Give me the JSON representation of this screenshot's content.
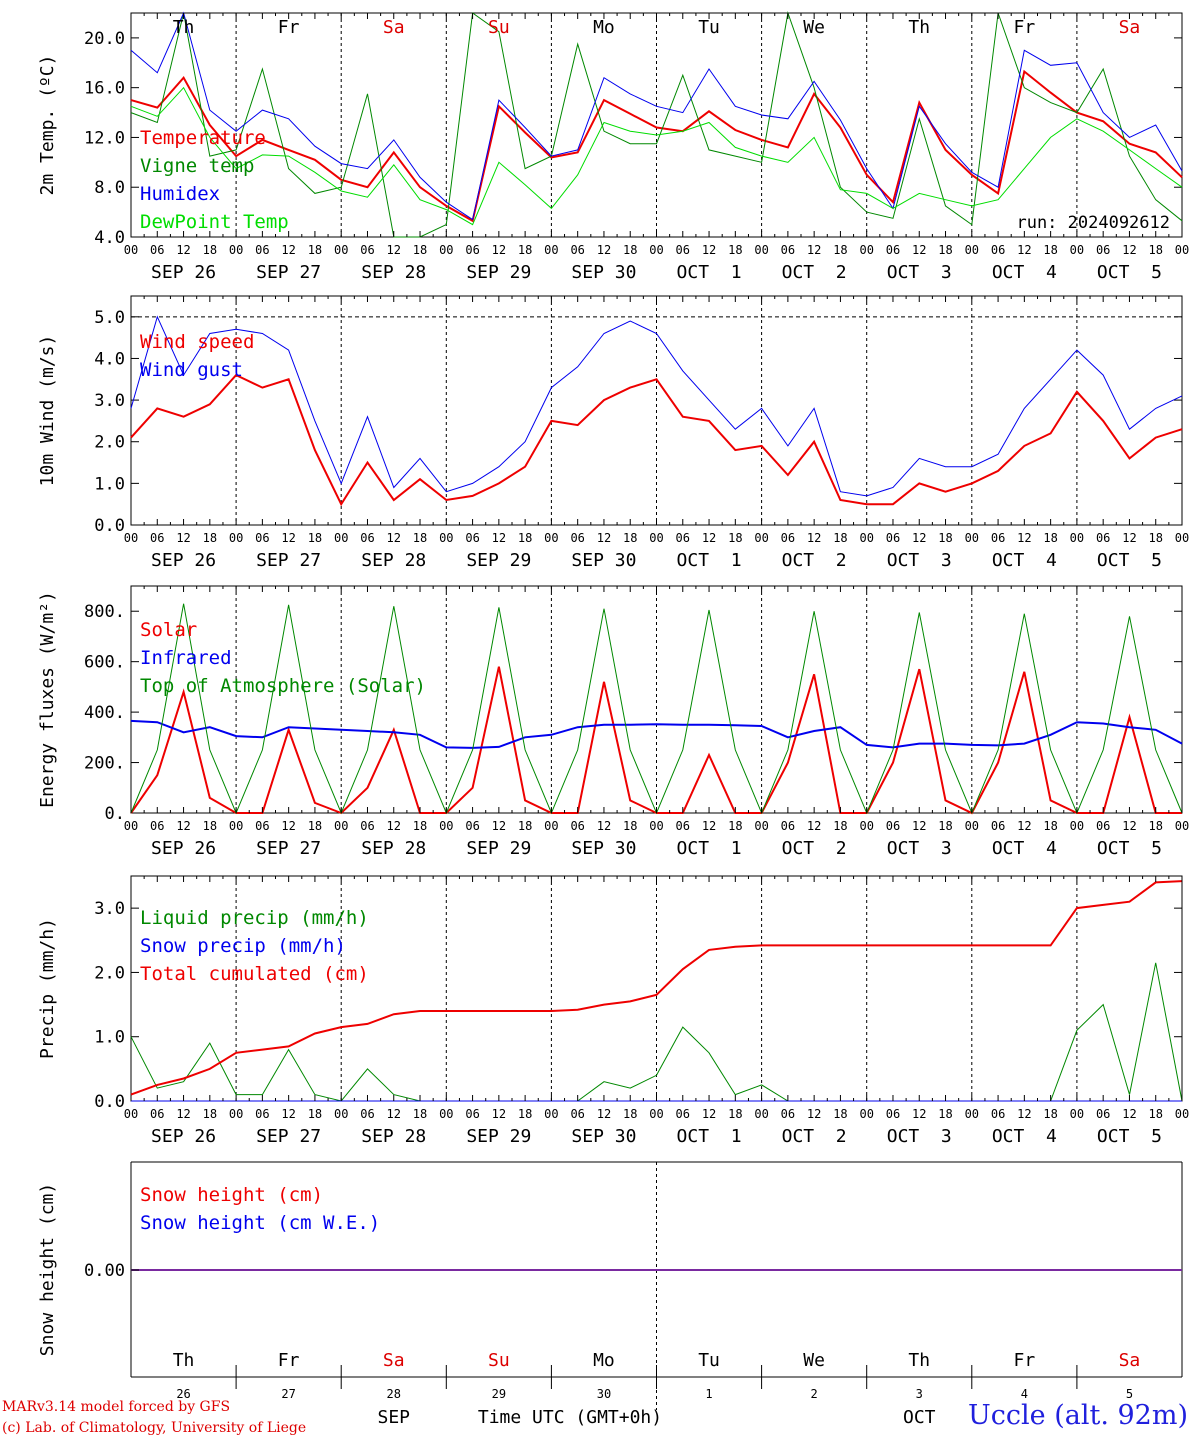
{
  "chart_data": [
    {
      "type": "line",
      "panel": "temperature",
      "ylabel": "2m Temp. (ºC)",
      "ylim": [
        4,
        22
      ],
      "yticks": [
        "4.0",
        "8.0",
        "12.0",
        "16.0",
        "20.0"
      ],
      "ytick_values": [
        4,
        8,
        12,
        16,
        20
      ],
      "run_label": "run: 2024092612",
      "weekday_labels": [
        {
          "label": "Th",
          "color": "#000000"
        },
        {
          "label": "Fr",
          "color": "#000000"
        },
        {
          "label": "Sa",
          "color": "#dd0000"
        },
        {
          "label": "Su",
          "color": "#dd0000"
        },
        {
          "label": "Mo",
          "color": "#000000"
        },
        {
          "label": "Tu",
          "color": "#000000"
        },
        {
          "label": "We",
          "color": "#000000"
        },
        {
          "label": "Th",
          "color": "#000000"
        },
        {
          "label": "Fr",
          "color": "#000000"
        },
        {
          "label": "Sa",
          "color": "#dd0000"
        }
      ],
      "x_hours": [
        0,
        6,
        12,
        18,
        24,
        30,
        36,
        42,
        48,
        54,
        60,
        66,
        72,
        78,
        84,
        90,
        96,
        102,
        108,
        114,
        120,
        126,
        132,
        138,
        144,
        150,
        156,
        162,
        168,
        174,
        180,
        186,
        192,
        198,
        204,
        210,
        216,
        222,
        228,
        234,
        240
      ],
      "series": [
        {
          "name": "Temperature",
          "color": "#ee0000",
          "width": 2,
          "values": [
            15,
            14.4,
            16.8,
            13,
            10.5,
            11.8,
            11,
            10.2,
            8.6,
            8,
            10.8,
            8,
            6.5,
            5.3,
            14.5,
            12.4,
            10.4,
            10.8,
            15,
            13.9,
            12.8,
            12.5,
            14.1,
            12.6,
            11.8,
            11.2,
            15.5,
            12.8,
            9,
            6.8,
            14.8,
            11,
            9,
            7.5,
            17.3,
            15.6,
            14,
            13.3,
            11.5,
            10.8,
            8.8
          ]
        },
        {
          "name": "Vigne temp",
          "color": "#008800",
          "width": 1,
          "values": [
            14,
            13.2,
            22.5,
            10.5,
            11,
            17.5,
            9.5,
            7.5,
            8,
            15.5,
            4,
            3,
            5,
            22,
            20.5,
            9.5,
            10.5,
            19.5,
            12.5,
            11.5,
            11.5,
            17,
            11,
            10.5,
            10,
            22,
            16,
            8,
            6,
            5.5,
            13.5,
            6.5,
            5,
            22,
            16,
            14.8,
            14,
            17.5,
            10.5,
            7,
            5.3
          ]
        },
        {
          "name": "Humidex",
          "color": "#0000ee",
          "width": 1,
          "values": [
            19,
            17.2,
            22,
            14.2,
            12.5,
            14.2,
            13.5,
            11.3,
            9.9,
            9.5,
            11.8,
            8.8,
            6.8,
            5.4,
            15,
            12.8,
            10.5,
            11,
            16.8,
            15.5,
            14.5,
            14,
            17.5,
            14.5,
            13.8,
            13.5,
            16.5,
            13.4,
            9.5,
            6.3,
            14.5,
            11.5,
            9.2,
            8,
            19,
            17.8,
            18,
            14,
            12,
            13,
            9.3
          ]
        },
        {
          "name": "DewPoint Temp",
          "color": "#00dd00",
          "width": 1,
          "values": [
            14.5,
            13.7,
            16,
            12,
            9.5,
            10.6,
            10.5,
            9.2,
            7.7,
            7.2,
            9.8,
            7,
            6.2,
            5,
            10,
            8.2,
            6.3,
            9,
            13.2,
            12.5,
            12.2,
            12.5,
            13.2,
            11.2,
            10.5,
            10,
            12,
            7.8,
            7.5,
            6.3,
            7.5,
            7,
            6.5,
            7,
            9.5,
            12,
            13.5,
            12.5,
            11,
            9.5,
            8
          ]
        }
      ]
    },
    {
      "type": "line",
      "panel": "wind",
      "ylabel": "10m Wind (m/s)",
      "ylim": [
        0,
        5.5
      ],
      "yticks": [
        "0.0",
        "1.0",
        "2.0",
        "3.0",
        "4.0",
        "5.0"
      ],
      "ytick_values": [
        0,
        1,
        2,
        3,
        4,
        5
      ],
      "x_hours": [
        0,
        6,
        12,
        18,
        24,
        30,
        36,
        42,
        48,
        54,
        60,
        66,
        72,
        78,
        84,
        90,
        96,
        102,
        108,
        114,
        120,
        126,
        132,
        138,
        144,
        150,
        156,
        162,
        168,
        174,
        180,
        186,
        192,
        198,
        204,
        210,
        216,
        222,
        228,
        234,
        240
      ],
      "series": [
        {
          "name": "Wind speed",
          "color": "#ee0000",
          "width": 2,
          "values": [
            2.1,
            2.8,
            2.6,
            2.9,
            3.6,
            3.3,
            3.5,
            1.8,
            0.5,
            1.5,
            0.6,
            1.1,
            0.6,
            0.7,
            1.0,
            1.4,
            2.5,
            2.4,
            3.0,
            3.3,
            3.5,
            2.6,
            2.5,
            1.8,
            1.9,
            1.2,
            2.0,
            0.6,
            0.5,
            0.5,
            1.0,
            0.8,
            1.0,
            1.3,
            1.9,
            2.2,
            3.2,
            2.5,
            1.6,
            2.1,
            2.3
          ]
        },
        {
          "name": "Wind gust",
          "color": "#0000ee",
          "width": 1,
          "values": [
            2.8,
            5.0,
            3.6,
            4.6,
            4.7,
            4.6,
            4.2,
            2.5,
            1.0,
            2.6,
            0.9,
            1.6,
            0.8,
            1.0,
            1.4,
            2.0,
            3.3,
            3.8,
            4.6,
            4.9,
            4.6,
            3.7,
            3.0,
            2.3,
            2.8,
            1.9,
            2.8,
            0.8,
            0.7,
            0.9,
            1.6,
            1.4,
            1.4,
            1.7,
            2.8,
            3.5,
            4.2,
            3.6,
            2.3,
            2.8,
            3.1
          ]
        }
      ]
    },
    {
      "type": "line",
      "panel": "energy",
      "ylabel": "Energy fluxes (W/m²)",
      "ylim": [
        0,
        900
      ],
      "yticks": [
        "0.",
        "200.",
        "400.",
        "600.",
        "800."
      ],
      "ytick_values": [
        0,
        200,
        400,
        600,
        800
      ],
      "x_hours": [
        0,
        6,
        12,
        18,
        24,
        30,
        36,
        42,
        48,
        54,
        60,
        66,
        72,
        78,
        84,
        90,
        96,
        102,
        108,
        114,
        120,
        126,
        132,
        138,
        144,
        150,
        156,
        162,
        168,
        174,
        180,
        186,
        192,
        198,
        204,
        210,
        216,
        222,
        228,
        234,
        240
      ],
      "series": [
        {
          "name": "Solar",
          "color": "#ee0000",
          "width": 2,
          "values": [
            0,
            150,
            480,
            60,
            0,
            0,
            330,
            40,
            0,
            100,
            330,
            0,
            0,
            100,
            580,
            50,
            0,
            0,
            520,
            50,
            0,
            0,
            230,
            0,
            0,
            200,
            550,
            0,
            0,
            200,
            570,
            50,
            0,
            200,
            560,
            50,
            0,
            0,
            380,
            0,
            0
          ]
        },
        {
          "name": "Infrared",
          "color": "#0000ee",
          "width": 2,
          "values": [
            365,
            360,
            320,
            340,
            305,
            300,
            340,
            335,
            330,
            325,
            320,
            310,
            260,
            258,
            262,
            300,
            310,
            340,
            350,
            350,
            352,
            350,
            350,
            348,
            345,
            300,
            325,
            340,
            270,
            260,
            275,
            275,
            270,
            268,
            275,
            310,
            360,
            355,
            340,
            330,
            275
          ]
        },
        {
          "name": "Top of Atmosphere (Solar)",
          "color": "#008800",
          "width": 1,
          "values": [
            0,
            250,
            830,
            250,
            0,
            250,
            825,
            250,
            0,
            250,
            820,
            250,
            0,
            250,
            815,
            250,
            0,
            250,
            810,
            250,
            0,
            250,
            805,
            250,
            0,
            250,
            800,
            250,
            0,
            250,
            795,
            250,
            0,
            250,
            790,
            250,
            0,
            250,
            780,
            250,
            0
          ]
        }
      ]
    },
    {
      "type": "line",
      "panel": "precip",
      "ylabel": "Precip (mm/h)",
      "ylim": [
        0,
        3.5
      ],
      "yticks": [
        "0.0",
        "1.0",
        "2.0",
        "3.0"
      ],
      "ytick_values": [
        0,
        1,
        2,
        3
      ],
      "x_hours": [
        0,
        6,
        12,
        18,
        24,
        30,
        36,
        42,
        48,
        54,
        60,
        66,
        72,
        78,
        84,
        90,
        96,
        102,
        108,
        114,
        120,
        126,
        132,
        138,
        144,
        150,
        156,
        162,
        168,
        174,
        180,
        186,
        192,
        198,
        204,
        210,
        216,
        222,
        228,
        234,
        240
      ],
      "series": [
        {
          "name": "Liquid precip (mm/h)",
          "color": "#008800",
          "width": 1,
          "values": [
            1.0,
            0.2,
            0.3,
            0.9,
            0.1,
            0.1,
            0.8,
            0.1,
            0.0,
            0.5,
            0.1,
            0.0,
            0.0,
            0.0,
            0.0,
            0.0,
            0.0,
            0.0,
            0.3,
            0.2,
            0.4,
            1.15,
            0.75,
            0.1,
            0.25,
            0.0,
            0.0,
            0.0,
            0.0,
            0.0,
            0.0,
            0.0,
            0.0,
            0.0,
            0.0,
            0.0,
            1.1,
            1.5,
            0.1,
            2.15,
            0.0
          ]
        },
        {
          "name": "Snow precip (mm/h)",
          "color": "#0000ee",
          "width": 1,
          "values": [
            0,
            0,
            0,
            0,
            0,
            0,
            0,
            0,
            0,
            0,
            0,
            0,
            0,
            0,
            0,
            0,
            0,
            0,
            0,
            0,
            0,
            0,
            0,
            0,
            0,
            0,
            0,
            0,
            0,
            0,
            0,
            0,
            0,
            0,
            0,
            0,
            0,
            0,
            0,
            0,
            0
          ]
        },
        {
          "name": "Total cumulated (cm)",
          "color": "#ee0000",
          "width": 2,
          "values": [
            0.1,
            0.25,
            0.35,
            0.5,
            0.75,
            0.8,
            0.85,
            1.05,
            1.15,
            1.2,
            1.35,
            1.4,
            1.4,
            1.4,
            1.4,
            1.4,
            1.4,
            1.42,
            1.5,
            1.55,
            1.65,
            2.05,
            2.35,
            2.4,
            2.42,
            2.42,
            2.42,
            2.42,
            2.42,
            2.42,
            2.42,
            2.42,
            2.42,
            2.42,
            2.42,
            2.42,
            3.0,
            3.05,
            3.1,
            3.4,
            3.42
          ]
        }
      ]
    },
    {
      "type": "line",
      "panel": "snow",
      "ylabel": "Snow height (cm)",
      "ytick": "0.00",
      "series": [
        {
          "name": "Snow height (cm)",
          "color": "#ee0000"
        },
        {
          "name": "Snow height (cm W.E.)",
          "color": "#0000ee"
        }
      ],
      "weekday_labels": [
        {
          "label": "Th",
          "color": "#000000"
        },
        {
          "label": "Fr",
          "color": "#000000"
        },
        {
          "label": "Sa",
          "color": "#dd0000"
        },
        {
          "label": "Su",
          "color": "#dd0000"
        },
        {
          "label": "Mo",
          "color": "#000000"
        },
        {
          "label": "Tu",
          "color": "#000000"
        },
        {
          "label": "We",
          "color": "#000000"
        },
        {
          "label": "Th",
          "color": "#000000"
        },
        {
          "label": "Fr",
          "color": "#000000"
        },
        {
          "label": "Sa",
          "color": "#dd0000"
        }
      ],
      "day_numbers": [
        "26",
        "27",
        "28",
        "29",
        "30",
        "1",
        "2",
        "3",
        "4",
        "5"
      ],
      "month_left": "SEP",
      "month_right": "OCT",
      "xlabel": "Time UTC (GMT+0h)"
    }
  ],
  "x_axis": {
    "hour_ticks": [
      "00",
      "06",
      "12",
      "18"
    ],
    "final_tick": "00",
    "date_labels": [
      "SEP 26",
      "SEP 27",
      "SEP 28",
      "SEP 29",
      "SEP 30",
      "OCT  1",
      "OCT  2",
      "OCT  3",
      "OCT  4",
      "OCT  5"
    ]
  },
  "footer": {
    "credit_line1": "MARv3.14 model forced by GFS",
    "credit_line2": "(c) Lab. of Climatology, University of Liege",
    "station": "Uccle (alt. 92m)"
  }
}
